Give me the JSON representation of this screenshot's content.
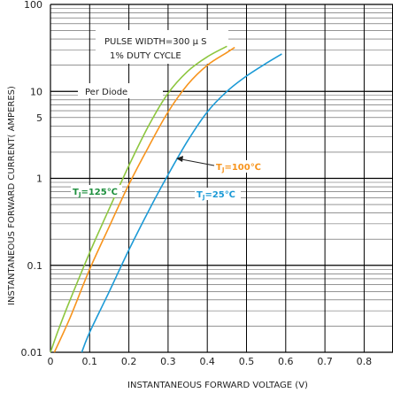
{
  "chart_data": {
    "type": "line",
    "xlabel": "INSTANTANEOUS FORWARD VOLTAGE (V)",
    "ylabel": "INSTANTANEOUS FORWARD CURRENT( AMPERES)",
    "xlim": [
      0,
      0.85
    ],
    "ylim": [
      0.01,
      100
    ],
    "yscale": "log",
    "grid": true,
    "x_ticks": [
      "0",
      "0.1",
      "0.2",
      "0.3",
      "0.4",
      "0.5",
      "0.6",
      "0.7",
      "0.8"
    ],
    "y_ticks": [
      "0.01",
      "0.1",
      "1",
      "5",
      "10",
      "100"
    ],
    "annotations": {
      "pulse_width": "PULSE WIDTH=300 μ S",
      "duty_cycle": "1% DUTY CYCLE",
      "per_diode": "Per Diode"
    },
    "series": [
      {
        "name": "TJ=125°C",
        "label_parts": {
          "t": "T",
          "sub": "J",
          "rest": "=125℃"
        },
        "color": "#8dc63f",
        "points": [
          [
            0.0,
            0.01
          ],
          [
            0.02,
            0.018
          ],
          [
            0.05,
            0.04
          ],
          [
            0.1,
            0.14
          ],
          [
            0.15,
            0.45
          ],
          [
            0.2,
            1.4
          ],
          [
            0.25,
            4.0
          ],
          [
            0.3,
            9.5
          ],
          [
            0.35,
            17
          ],
          [
            0.4,
            25
          ],
          [
            0.45,
            33
          ]
        ]
      },
      {
        "name": "TJ=100°C",
        "label_parts": {
          "t": "T",
          "sub": "J",
          "rest": "=100℃"
        },
        "color": "#f7941d",
        "points": [
          [
            0.01,
            0.01
          ],
          [
            0.05,
            0.025
          ],
          [
            0.1,
            0.09
          ],
          [
            0.15,
            0.28
          ],
          [
            0.2,
            0.85
          ],
          [
            0.25,
            2.3
          ],
          [
            0.3,
            5.8
          ],
          [
            0.35,
            12
          ],
          [
            0.4,
            20
          ],
          [
            0.45,
            28
          ],
          [
            0.47,
            32
          ]
        ]
      },
      {
        "name": "TJ=25°C",
        "label_parts": {
          "t": "T",
          "sub": "J",
          "rest": "=25℃"
        },
        "color": "#1c9ad6",
        "points": [
          [
            0.08,
            0.01
          ],
          [
            0.1,
            0.017
          ],
          [
            0.15,
            0.05
          ],
          [
            0.2,
            0.15
          ],
          [
            0.25,
            0.42
          ],
          [
            0.3,
            1.1
          ],
          [
            0.35,
            2.7
          ],
          [
            0.4,
            5.8
          ],
          [
            0.45,
            10
          ],
          [
            0.5,
            15
          ],
          [
            0.55,
            21
          ],
          [
            0.59,
            27
          ]
        ]
      }
    ]
  }
}
